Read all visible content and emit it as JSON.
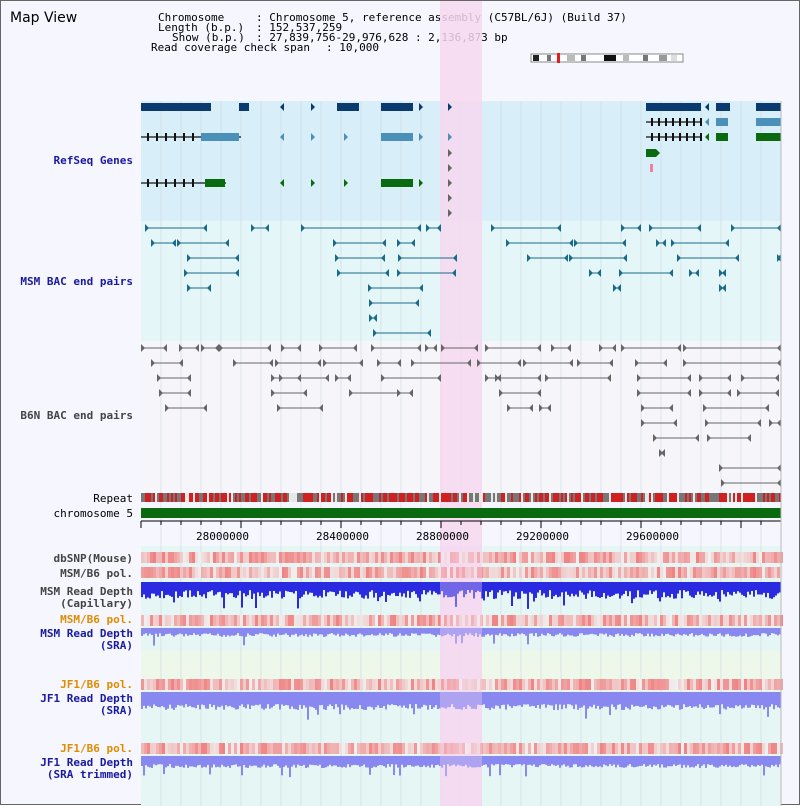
{
  "page": {
    "title": "Map View"
  },
  "info": {
    "chromosome_key": "Chromosome",
    "chromosome_val": ": Chromosome 5, reference assembly (C57BL/6J) (Build 37)",
    "length_key": "Length (b.p.)",
    "length_val": ": 152,537,259",
    "show_key": "Show (b.p.)",
    "show_val": ": 27,839,756-29,976,628 : 2,136,873 bp",
    "coverage_key": "Read coverage check span",
    "coverage_val": ": 10,000"
  },
  "tracks": {
    "refseq": "RefSeq Genes",
    "msm_bac": "MSM BAC end pairs",
    "b6n_bac": "B6N BAC end pairs",
    "repeat": "Repeat",
    "chromosome": "chromosome 5",
    "dbsnp": "dbSNP(Mouse)",
    "msm_b6_pol_1": "MSM/B6 pol.",
    "msm_depth_cap_1": "MSM Read Depth",
    "msm_depth_cap_2": "(Capillary)",
    "msm_b6_pol_2": "MSM/B6 pol.",
    "msm_depth_sra_1": "MSM Read Depth",
    "msm_depth_sra_2": "(SRA)",
    "jf1_b6_pol_1": "JF1/B6 pol.",
    "jf1_depth_sra_1": "JF1 Read Depth",
    "jf1_depth_sra_2": "(SRA)",
    "jf1_b6_pol_2": "JF1/B6 pol.",
    "jf1_depth_trim_1": "JF1 Read Depth",
    "jf1_depth_trim_2": "(SRA trimmed)"
  },
  "axis": {
    "ticks": [
      "28000000",
      "28400000",
      "28800000",
      "29200000",
      "29600000"
    ]
  },
  "colors": {
    "refseq_dark": "#0a3a6e",
    "refseq_mid": "#4a90b8",
    "refseq_green": "#0a6a10",
    "msm_bac": "#1a6a8a",
    "b6n_bac": "#555555",
    "highlight": "#f6d8f0",
    "chromosome_bar": "#0a6a10",
    "depth_blue": "#2a2ae0",
    "depth_light": "#8888f0"
  }
}
